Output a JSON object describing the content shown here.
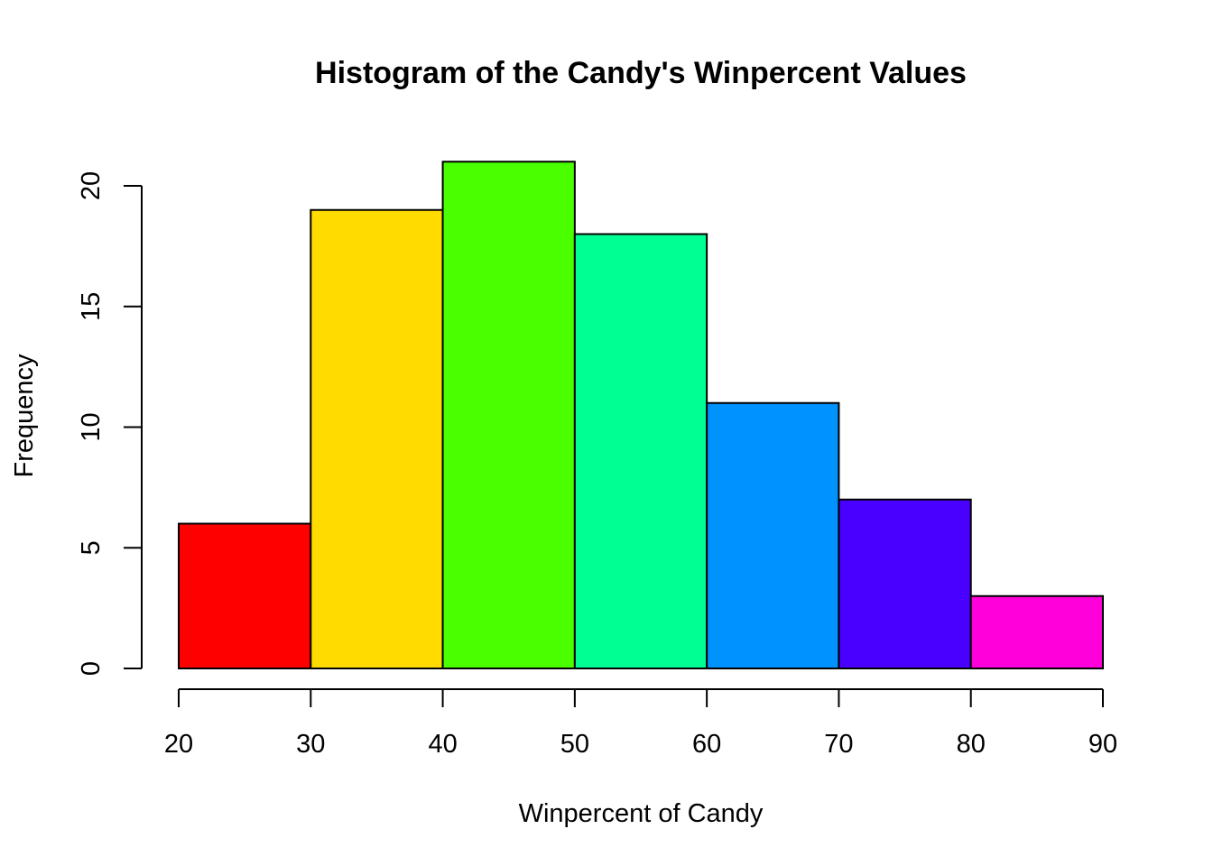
{
  "chart_data": {
    "type": "bar",
    "subtype": "histogram",
    "title": "Histogram of the Candy's Winpercent Values",
    "xlabel": "Winpercent of Candy",
    "ylabel": "Frequency",
    "bins": [
      {
        "from": 20,
        "to": 30,
        "count": 6,
        "color": "#FF0000"
      },
      {
        "from": 30,
        "to": 40,
        "count": 19,
        "color": "#FFDB00"
      },
      {
        "from": 40,
        "to": 50,
        "count": 21,
        "color": "#49FF00"
      },
      {
        "from": 50,
        "to": 60,
        "count": 18,
        "color": "#00FF92"
      },
      {
        "from": 60,
        "to": 70,
        "count": 11,
        "color": "#0092FF"
      },
      {
        "from": 70,
        "to": 80,
        "count": 7,
        "color": "#4900FF"
      },
      {
        "from": 80,
        "to": 90,
        "count": 3,
        "color": "#FF00DB"
      }
    ],
    "xlim": [
      20,
      90
    ],
    "ylim": [
      0,
      21
    ],
    "xticks": [
      "20",
      "30",
      "40",
      "50",
      "60",
      "70",
      "80",
      "90"
    ],
    "yticks": [
      "0",
      "5",
      "10",
      "15",
      "20"
    ],
    "grid": false,
    "legend": "none"
  }
}
